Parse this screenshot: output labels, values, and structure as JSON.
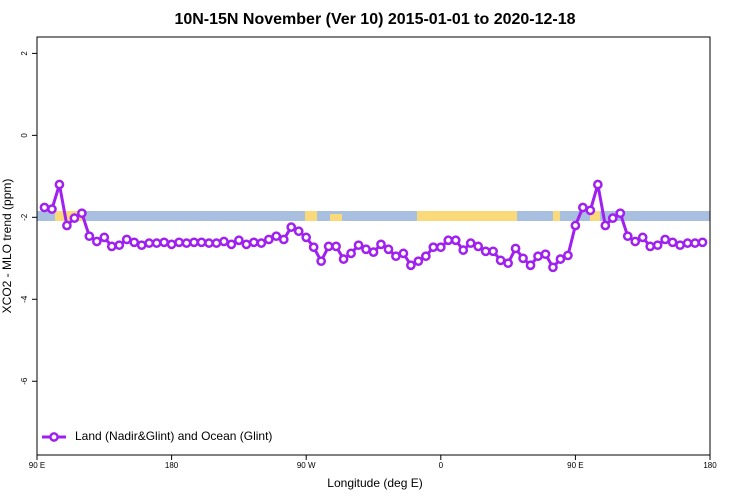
{
  "chart_data": {
    "type": "line",
    "title": "10N-15N November (Ver 10)   2015-01-01 to 2020-12-18",
    "x_label": "Longitude (deg E)",
    "y_label": "XCO2 - MLO trend (ppm)",
    "xlim": [
      90,
      540
    ],
    "xticks": [
      {
        "value": 90,
        "label": "90 E"
      },
      180,
      {
        "value": 270,
        "label": "90 W"
      },
      {
        "value": 360,
        "label": "0"
      },
      {
        "value": 450,
        "label": "90 E"
      },
      {
        "value": 540,
        "label": "180"
      }
    ],
    "ylim": [
      -7.8,
      2.4
    ],
    "yticks": [
      2,
      0,
      -2,
      -4,
      -6
    ],
    "legend": "bottom-left",
    "x": [
      95,
      100,
      105,
      110,
      115,
      120,
      125,
      130,
      135,
      140,
      145,
      150,
      155,
      160,
      165,
      170,
      175,
      180,
      185,
      190,
      195,
      200,
      205,
      210,
      215,
      220,
      225,
      230,
      235,
      240,
      245,
      250,
      255,
      260,
      265,
      270,
      275,
      280,
      285,
      290,
      295,
      300,
      305,
      310,
      315,
      320,
      325,
      330,
      335,
      340,
      345,
      350,
      355,
      360,
      365,
      370,
      375,
      380,
      385,
      390,
      395,
      400,
      405,
      410,
      415,
      420,
      425,
      430,
      435,
      440,
      445,
      450,
      455,
      460,
      465,
      470,
      475,
      480,
      485,
      490,
      495,
      500,
      505,
      510,
      515,
      520,
      525,
      530,
      535
    ],
    "series": [
      {
        "name": "Land (Nadir&Glint) and Ocean (Glint)",
        "color": "#a020f0",
        "values": [
          -1.76,
          -1.8,
          -1.2,
          -2.2,
          -2.02,
          -1.9,
          -2.46,
          -2.59,
          -2.49,
          -2.71,
          -2.68,
          -2.54,
          -2.61,
          -2.68,
          -2.63,
          -2.63,
          -2.61,
          -2.66,
          -2.61,
          -2.63,
          -2.61,
          -2.61,
          -2.63,
          -2.63,
          -2.59,
          -2.66,
          -2.56,
          -2.66,
          -2.61,
          -2.63,
          -2.54,
          -2.46,
          -2.54,
          -2.24,
          -2.34,
          -2.49,
          -2.73,
          -3.07,
          -2.71,
          -2.71,
          -3.02,
          -2.88,
          -2.68,
          -2.78,
          -2.85,
          -2.66,
          -2.78,
          -2.95,
          -2.88,
          -3.17,
          -3.07,
          -2.95,
          -2.73,
          -2.73,
          -2.56,
          -2.56,
          -2.8,
          -2.63,
          -2.71,
          -2.83,
          -2.83,
          -3.05,
          -3.12,
          -2.76,
          -3.0,
          -3.17,
          -2.95,
          -2.9,
          -3.22,
          -3.02,
          -2.93,
          -2.2,
          -1.76,
          -1.83,
          -1.2,
          -2.2,
          -2.02,
          -1.9,
          -2.46,
          -2.59,
          -2.49,
          -2.71,
          -2.68,
          -2.54,
          -2.61,
          -2.68,
          -2.63,
          -2.63,
          -2.61
        ]
      }
    ]
  }
}
